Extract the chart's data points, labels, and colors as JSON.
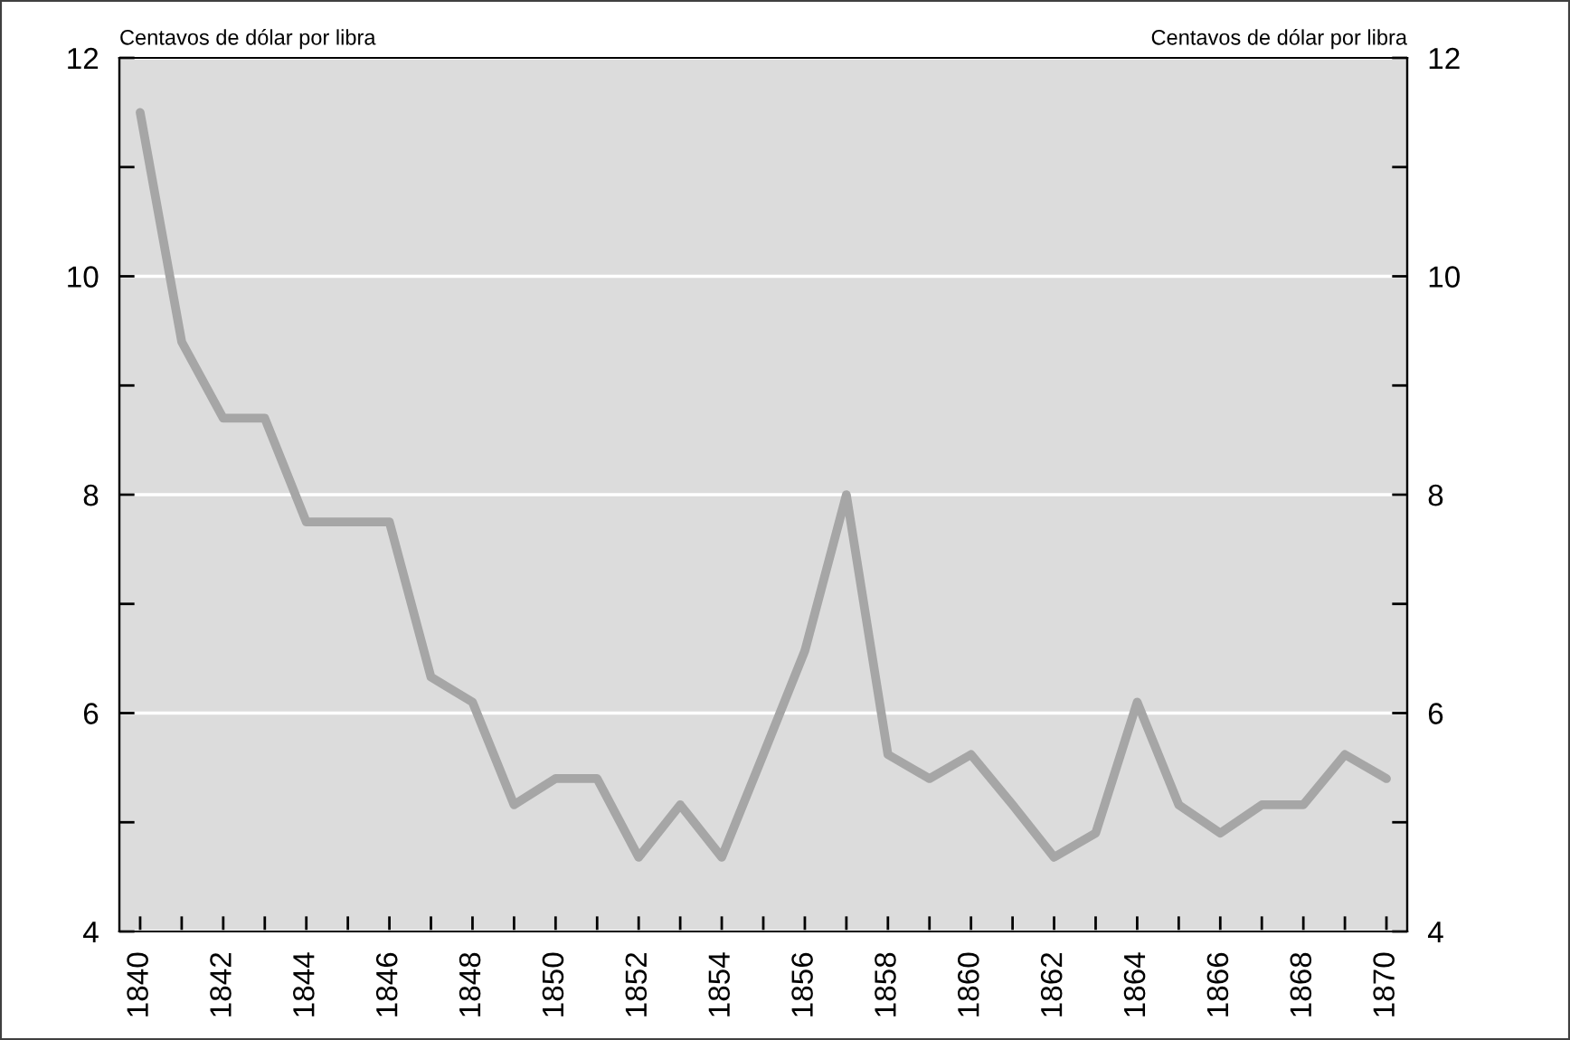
{
  "chart_data": {
    "type": "line",
    "ylabel": "Centavos de dólar por libra",
    "y2label": "Centavos de dólar por libra",
    "x": [
      1840,
      1841,
      1842,
      1843,
      1844,
      1845,
      1846,
      1847,
      1848,
      1849,
      1850,
      1851,
      1852,
      1853,
      1854,
      1855,
      1856,
      1857,
      1858,
      1859,
      1860,
      1861,
      1862,
      1863,
      1864,
      1865,
      1866,
      1867,
      1868,
      1869,
      1870
    ],
    "series": [
      {
        "color": "#a6a6a6",
        "values": [
          11.5,
          9.4,
          8.7,
          8.7,
          7.75,
          7.75,
          7.75,
          6.33,
          6.1,
          5.16,
          5.4,
          5.4,
          4.68,
          5.16,
          4.68,
          5.62,
          6.57,
          8.0,
          5.62,
          5.4,
          5.62,
          5.16,
          4.68,
          4.9,
          6.1,
          5.16,
          4.9,
          5.16,
          5.16,
          5.62,
          5.4
        ]
      }
    ],
    "xlim": [
      1839.5,
      1870.5
    ],
    "xticks": [
      1840,
      {
        "value": 1841,
        "label": null
      },
      1842,
      {
        "value": 1843,
        "label": null
      },
      1844,
      {
        "value": 1845,
        "label": null
      },
      1846,
      {
        "value": 1847,
        "label": null
      },
      1848,
      {
        "value": 1849,
        "label": null
      },
      1850,
      {
        "value": 1851,
        "label": null
      },
      1852,
      {
        "value": 1853,
        "label": null
      },
      1854,
      {
        "value": 1855,
        "label": null
      },
      1856,
      {
        "value": 1857,
        "label": null
      },
      1858,
      {
        "value": 1859,
        "label": null
      },
      1860,
      {
        "value": 1861,
        "label": null
      },
      1862,
      {
        "value": 1863,
        "label": null
      },
      1864,
      {
        "value": 1865,
        "label": null
      },
      1866,
      {
        "value": 1867,
        "label": null
      },
      1868,
      {
        "value": 1869,
        "label": null
      },
      1870
    ],
    "ylim": [
      4,
      12
    ],
    "yticks": [
      4,
      {
        "value": 5,
        "label": null
      },
      6,
      {
        "value": 7,
        "label": null
      },
      8,
      {
        "value": 9,
        "label": null
      },
      10,
      {
        "value": 11,
        "label": null
      },
      12
    ],
    "y2lim": [
      4,
      12
    ],
    "y2ticks": [
      4,
      {
        "value": 5,
        "label": null
      },
      6,
      {
        "value": 7,
        "label": null
      },
      8,
      {
        "value": 9,
        "label": null
      },
      10,
      {
        "value": 11,
        "label": null
      },
      12
    ],
    "grid": "y",
    "line_style": "solid",
    "marker": "none"
  }
}
